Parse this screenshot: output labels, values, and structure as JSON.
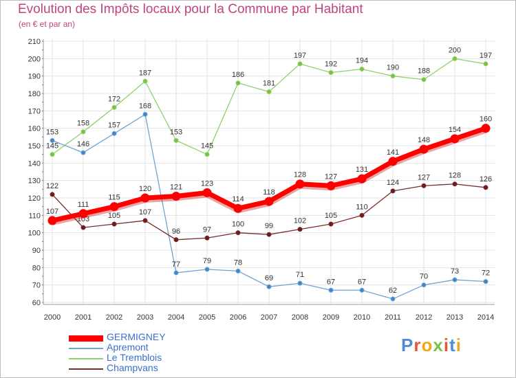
{
  "title": "Evolution des Impôts locaux pour la Commune par Habitant",
  "subtitle": "(en € et par an)",
  "logo": {
    "text": "Proxiti",
    "letter_colors": [
      "#4a8fd6",
      "#e8553a",
      "#f2a51a",
      "#7ac143",
      "#e8553a",
      "#4a8fd6",
      "#f2a51a"
    ]
  },
  "chart_data": {
    "type": "line",
    "categories": [
      "2000",
      "2001",
      "2002",
      "2003",
      "2004",
      "2005",
      "2006",
      "2007",
      "2008",
      "2009",
      "2010",
      "2011",
      "2012",
      "2013",
      "2014"
    ],
    "ylim": [
      60,
      210
    ],
    "yticks": [
      60,
      70,
      80,
      90,
      100,
      110,
      120,
      130,
      140,
      150,
      160,
      170,
      180,
      190,
      200,
      210
    ],
    "grid": true,
    "series": [
      {
        "name": "Le Tremblois",
        "color": "#8fd16a",
        "marker": "#7ac143",
        "values": [
          145,
          158,
          172,
          187,
          153,
          145,
          186,
          181,
          197,
          192,
          194,
          190,
          188,
          200,
          197
        ],
        "labels": [
          "145",
          "158",
          "172",
          "187",
          "153",
          "145",
          "186",
          "181",
          "197",
          "192",
          "194",
          "190",
          "188",
          "200",
          "197"
        ]
      },
      {
        "name": "Apremont",
        "color": "#6ea3d6",
        "marker": "#3f86c9",
        "values": [
          153,
          146,
          157,
          168,
          77,
          79,
          78,
          69,
          71,
          67,
          67,
          62,
          70,
          73,
          72
        ],
        "labels": [
          "153",
          "146",
          "157",
          "168",
          "77",
          "79",
          "78",
          "69",
          "71",
          "67",
          "67",
          "62",
          "70",
          "73",
          "72"
        ]
      },
      {
        "name": "Champvans",
        "color": "#7a2a2a",
        "marker": "#6b1c1c",
        "values": [
          122,
          103,
          105,
          107,
          96,
          97,
          100,
          99,
          102,
          105,
          110,
          124,
          127,
          128,
          126
        ],
        "labels": [
          "122",
          "103",
          "105",
          "107",
          "96",
          "97",
          "100",
          "99",
          "102",
          "105",
          "110",
          "124",
          "127",
          "128",
          "126"
        ]
      },
      {
        "name": "GERMIGNEY",
        "color": "#ff0000",
        "marker": "#ff0000",
        "values": [
          107,
          111,
          115,
          120,
          121,
          123,
          114,
          118,
          128,
          127,
          131,
          141,
          148,
          154,
          160
        ],
        "labels": [
          "107",
          "111",
          "115",
          "120",
          "121",
          "123",
          "114",
          "118",
          "128",
          "127",
          "131",
          "141",
          "148",
          "154",
          "160"
        ]
      }
    ],
    "legend": [
      {
        "label": "GERMIGNEY",
        "color": "#ff0000"
      },
      {
        "label": "Apremont",
        "color": "#6ea3d6"
      },
      {
        "label": "Le Tremblois",
        "color": "#8fd16a"
      },
      {
        "label": "Champvans",
        "color": "#7a2a2a"
      }
    ]
  }
}
